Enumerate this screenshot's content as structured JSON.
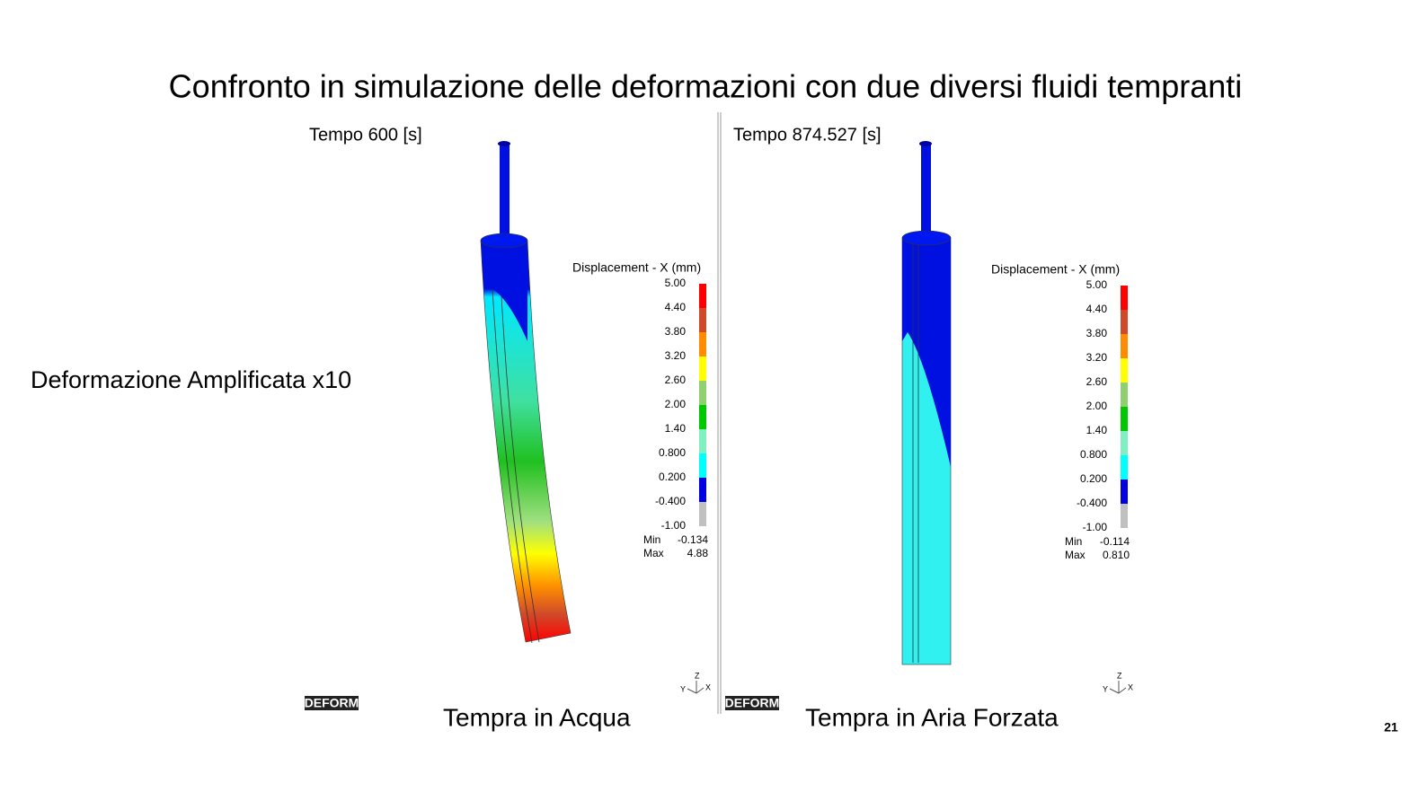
{
  "title": "Confronto in simulazione delle deformazioni con due diversi fluidi tempranti",
  "left_label": "Deformazione Amplificata x10",
  "panels": [
    {
      "time": "Tempo 600 [s]",
      "caption": "Tempra in Acqua",
      "logo": "DEFORM",
      "axes": [
        "Y",
        "Z",
        "X"
      ],
      "legend": {
        "title": "Displacement - X (mm)",
        "levels": [
          "5.00",
          "4.40",
          "3.80",
          "3.20",
          "2.60",
          "2.00",
          "1.40",
          "0.800",
          "0.200",
          "-0.400",
          "-1.00"
        ],
        "colors": [
          "#ff0000",
          "#d04a2a",
          "#ff8c00",
          "#ffff00",
          "#90d070",
          "#00c800",
          "#80f0c0",
          "#00ffff",
          "#0000e0",
          "#c0c0c0"
        ],
        "min_label": "Min",
        "min": "-0.134",
        "max_label": "Max",
        "max": "4.88"
      }
    },
    {
      "time": "Tempo 874.527 [s]",
      "caption": "Tempra in Aria Forzata",
      "logo": "DEFORM",
      "axes": [
        "Y",
        "Z",
        "X"
      ],
      "legend": {
        "title": "Displacement - X (mm)",
        "levels": [
          "5.00",
          "4.40",
          "3.80",
          "3.20",
          "2.60",
          "2.00",
          "1.40",
          "0.800",
          "0.200",
          "-0.400",
          "-1.00"
        ],
        "colors": [
          "#ff0000",
          "#d04a2a",
          "#ff8c00",
          "#ffff00",
          "#90d070",
          "#00c800",
          "#80f0c0",
          "#00ffff",
          "#0000e0",
          "#c0c0c0"
        ],
        "min_label": "Min",
        "min": "-0.114",
        "max_label": "Max",
        "max": "0.810"
      }
    }
  ],
  "page_number": "21"
}
